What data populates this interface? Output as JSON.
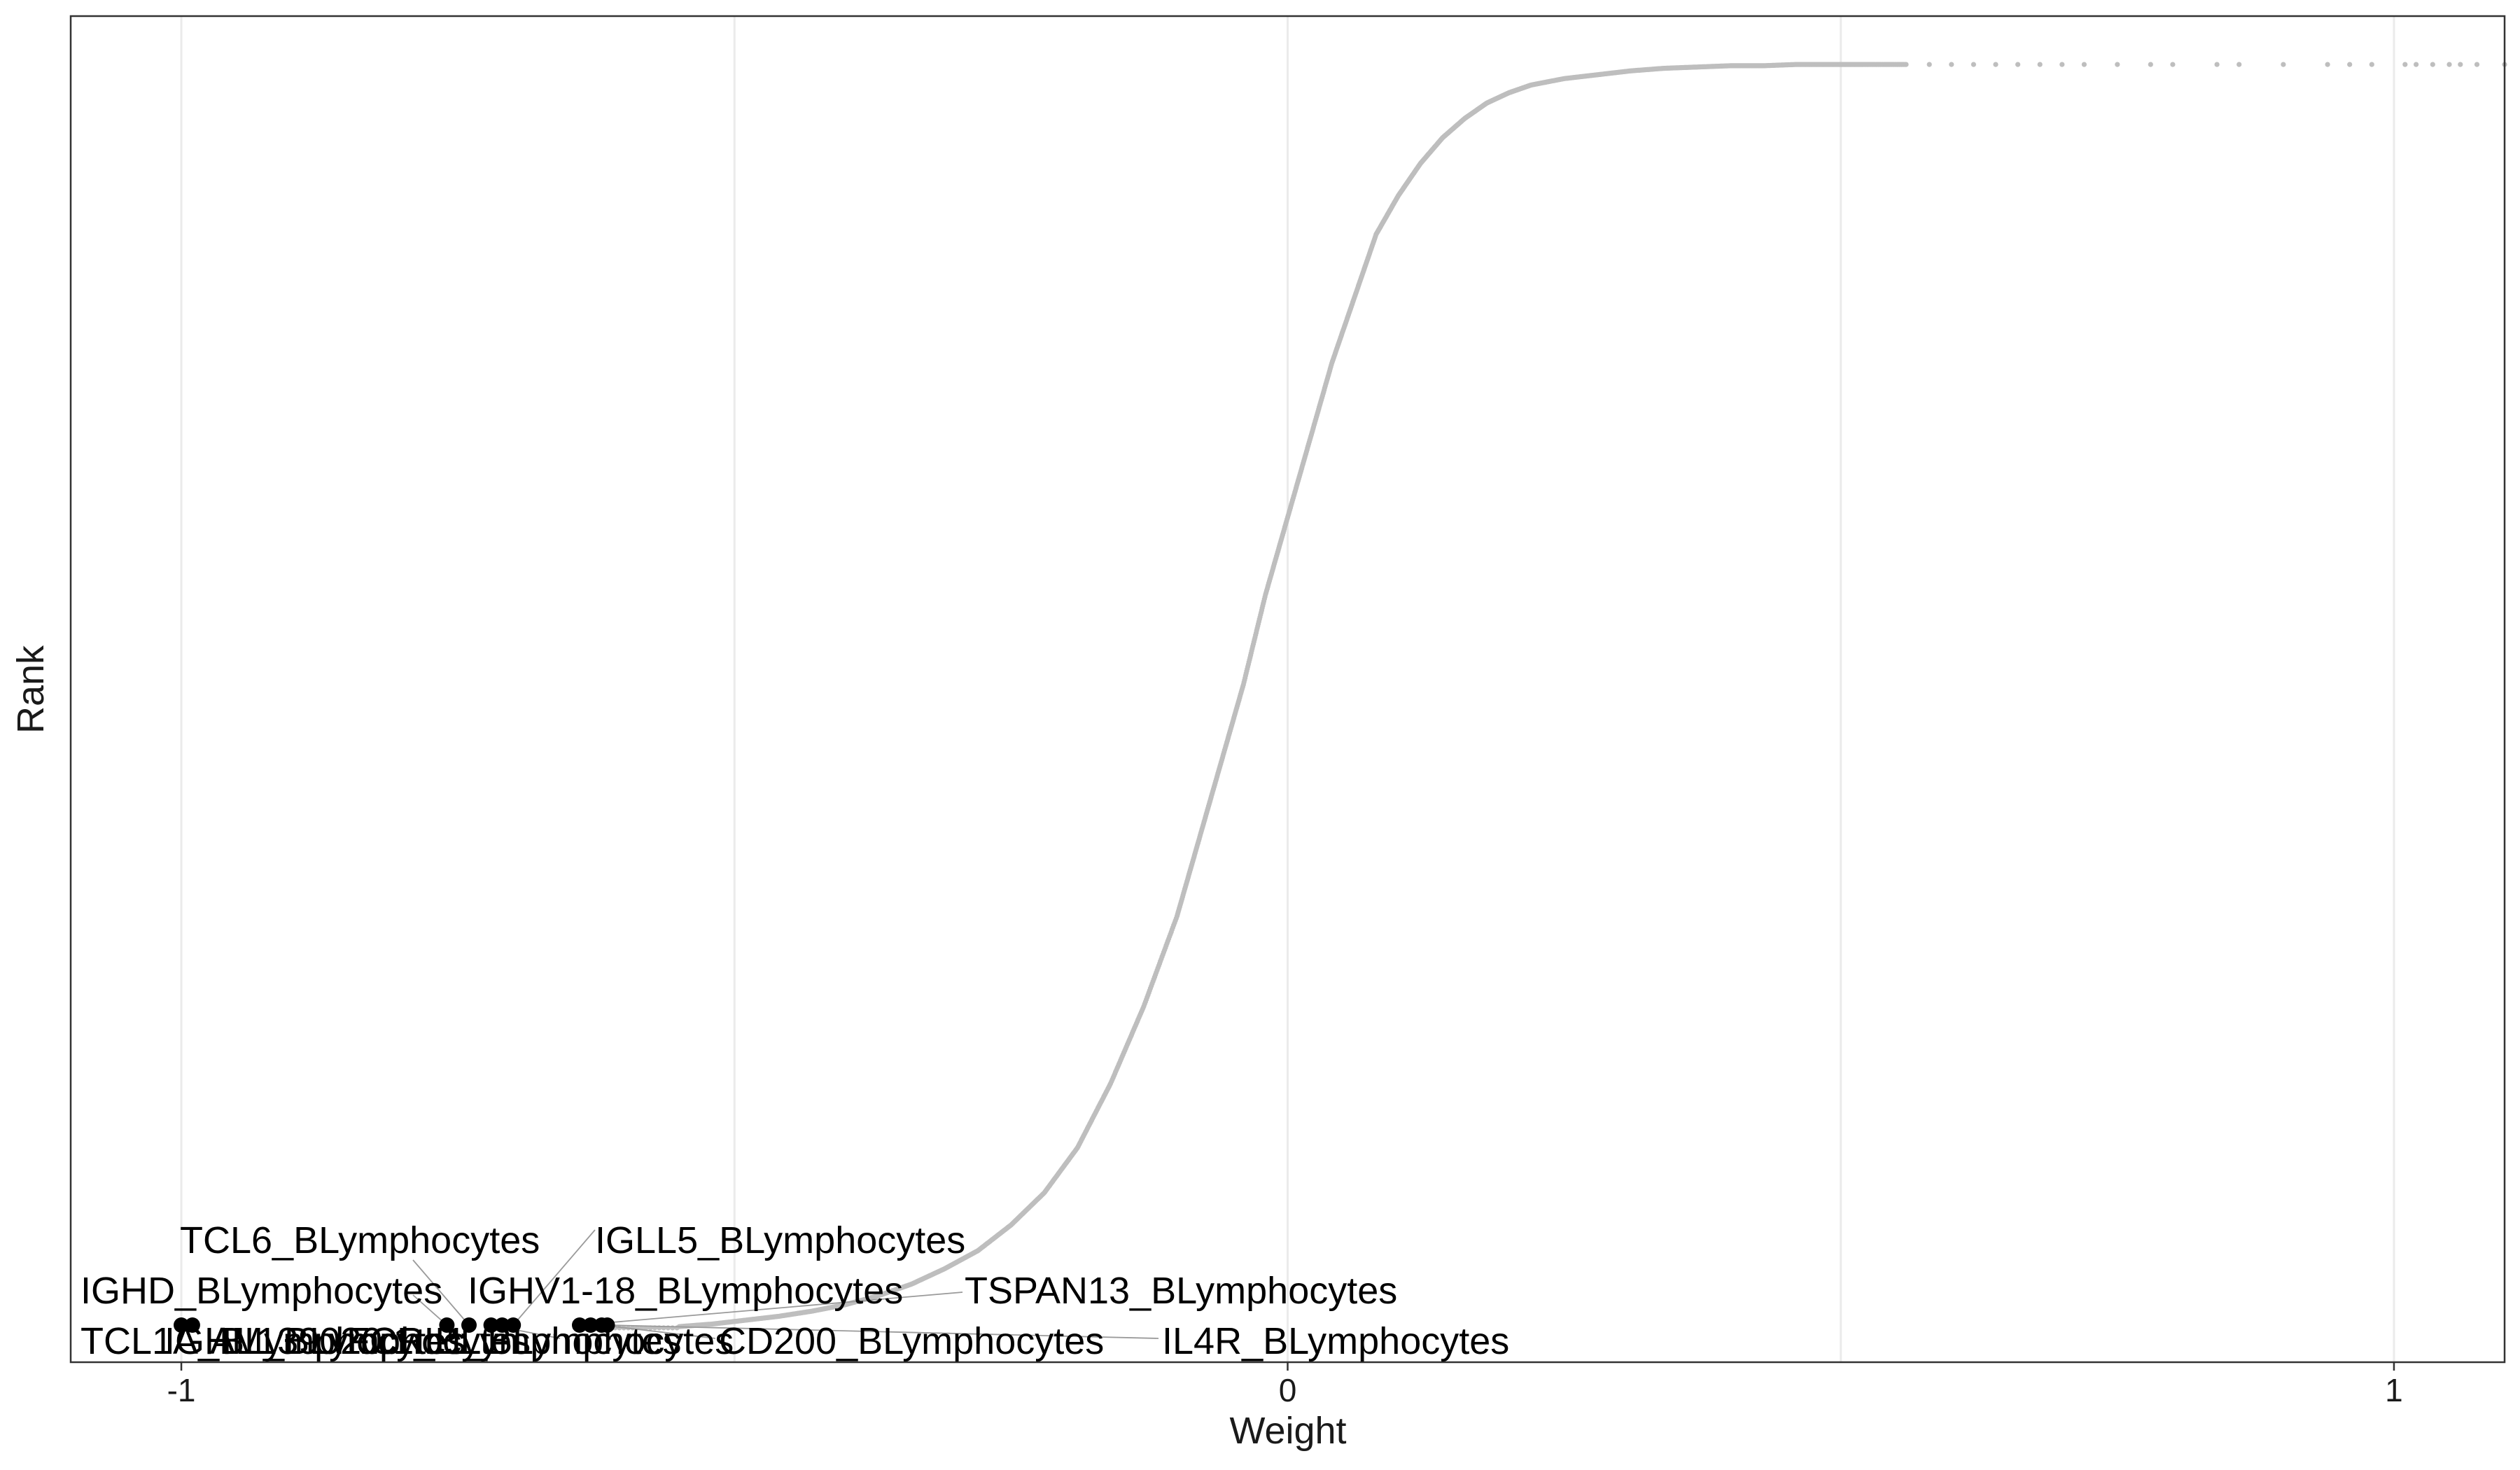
{
  "chart_data": {
    "type": "scatter",
    "title": "",
    "xlabel": "Weight",
    "ylabel": "Rank",
    "xlim": [
      -1.1,
      1.1
    ],
    "ylim": [
      0,
      1.0
    ],
    "x_ticks": [
      -1,
      0,
      1
    ],
    "x_tick_labels": [
      "-1",
      "0",
      "1"
    ],
    "y_ticks": [],
    "grid": "vertical only",
    "legend": "none",
    "colors": {
      "background_points": "#bebebe",
      "highlight_points": "#000000",
      "label_lines": "#9a9a9a",
      "grid": "#ebebeb",
      "frame": "#333333"
    },
    "background_curve": {
      "description_color": "#bebebe",
      "x": [
        -0.55,
        -0.52,
        -0.49,
        -0.46,
        -0.43,
        -0.4,
        -0.37,
        -0.34,
        -0.31,
        -0.28,
        -0.25,
        -0.22,
        -0.19,
        -0.16,
        -0.13,
        -0.1,
        -0.08,
        -0.06,
        -0.04,
        -0.02,
        0.0,
        0.02,
        0.04,
        0.06,
        0.08,
        0.1,
        0.12,
        0.14,
        0.16,
        0.18,
        0.2,
        0.22,
        0.25,
        0.28,
        0.31,
        0.34,
        0.37,
        0.4,
        0.43,
        0.46,
        0.49,
        0.52,
        0.56
      ],
      "y": [
        0.001,
        0.003,
        0.006,
        0.009,
        0.013,
        0.018,
        0.025,
        0.034,
        0.046,
        0.06,
        0.08,
        0.105,
        0.14,
        0.19,
        0.25,
        0.32,
        0.38,
        0.44,
        0.5,
        0.57,
        0.63,
        0.69,
        0.75,
        0.8,
        0.85,
        0.88,
        0.905,
        0.925,
        0.94,
        0.952,
        0.96,
        0.966,
        0.971,
        0.974,
        0.977,
        0.979,
        0.98,
        0.981,
        0.981,
        0.982,
        0.982,
        0.982,
        0.982
      ],
      "sparse_x": [
        0.58,
        0.6,
        0.62,
        0.64,
        0.66,
        0.68,
        0.7,
        0.72,
        0.75,
        0.78,
        0.8,
        0.84,
        0.86,
        0.9,
        0.94,
        0.96,
        0.98,
        1.01,
        1.02,
        1.035,
        1.05,
        1.06,
        1.075,
        1.1,
        1.12,
        1.15,
        1.175
      ]
    },
    "highlight_points": [
      {
        "name": "TCL1A_BLymphocytes",
        "x": -1.0,
        "y": 0.0
      },
      {
        "name": "IGHM_BLymphocytes",
        "x": -0.99,
        "y": 0.0
      },
      {
        "name": "IGHD_BLymphocytes",
        "x": -0.76,
        "y": 0.0
      },
      {
        "name": "TCL6_BLymphocytes",
        "x": -0.74,
        "y": 0.0
      },
      {
        "name": "FCRL1_BLymphocytes",
        "x": -0.72,
        "y": 0.0
      },
      {
        "name": "AL139020.1_BLymphocytes",
        "x": -0.71,
        "y": 0.0
      },
      {
        "name": "IGHV1-18_BLymphocytes",
        "x": -0.7,
        "y": 0.0
      },
      {
        "name": "IGLL5_BLymphocytes",
        "x": -0.64,
        "y": 0.0
      },
      {
        "name": "CD200_BLymphocytes",
        "x": -0.63,
        "y": 0.0
      },
      {
        "name": "TSPAN13_BLymphocytes",
        "x": -0.62,
        "y": 0.0
      },
      {
        "name": "IL4R_BLymphocytes",
        "x": -0.615,
        "y": 0.0
      }
    ]
  },
  "labels": {
    "tcl1a": "TCL1A_BLymphocytes",
    "ighm": "IGHM_BLymphocytes",
    "al139020": "AL139020.1_BLymphocytes",
    "fcrl1": "FCRL1_BLymphocytes",
    "cd200": "CD200_BLymphocytes",
    "il4r": "IL4R_BLymphocytes",
    "ighd": "IGHD_BLymphocytes",
    "ighv": "IGHV1-18_BLymphocytes",
    "tspan13": "TSPAN13_BLymphocytes",
    "tcl6": "TCL6_BLymphocytes",
    "igll5": "IGLL5_BLymphocytes"
  }
}
